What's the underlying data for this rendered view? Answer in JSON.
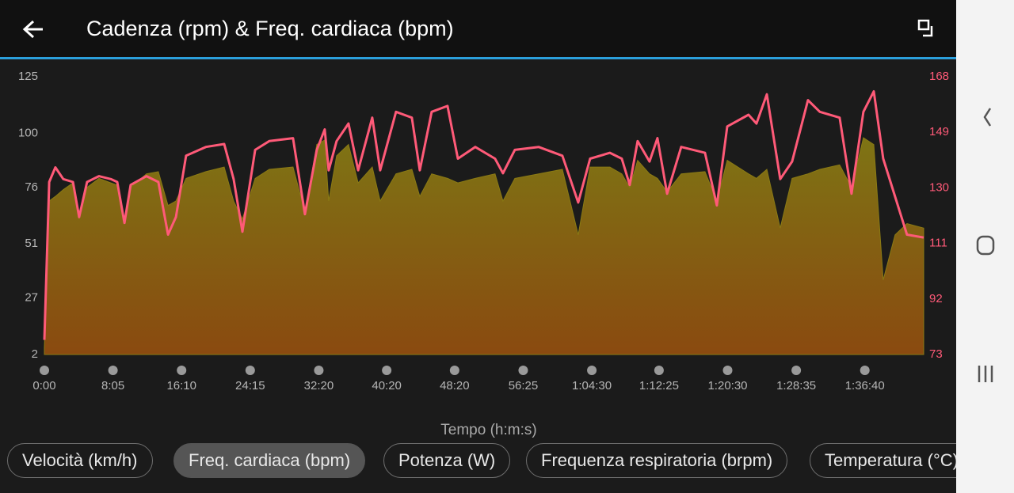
{
  "header": {
    "title": "Cadenza (rpm) & Freq. cardiaca (bpm)"
  },
  "chart_data": {
    "type": "area-line",
    "xlabel": "Tempo (h:m:s)",
    "x": [
      0,
      34,
      78,
      134,
      202,
      246,
      302,
      386,
      470,
      515,
      566,
      610,
      722,
      806,
      874,
      930,
      1002,
      1142,
      1271,
      1338,
      1400,
      1490,
      1590,
      1758,
      1842,
      1926,
      1982,
      2010,
      2066,
      2150,
      2218,
      2318,
      2374,
      2486,
      2598,
      2654,
      2738,
      2850,
      2923,
      3046,
      3186,
      3242,
      3326,
      3494,
      3662,
      3774,
      3858,
      3998,
      4082,
      4138,
      4194,
      4278,
      4334,
      4402,
      4502,
      4670,
      4754,
      4827,
      4978,
      5034,
      5107,
      5202,
      5286,
      5398,
      5482,
      5622,
      5706,
      5790,
      5863,
      5930,
      6014,
      6098,
      6216
    ],
    "series": [
      {
        "name": "Cadenza (rpm)",
        "color": "#8a7a14",
        "values": [
          5,
          70,
          72,
          75,
          78,
          62,
          76,
          80,
          78,
          77,
          60,
          76,
          82,
          83,
          68,
          70,
          80,
          83,
          85,
          70,
          62,
          80,
          84,
          85,
          65,
          95,
          97,
          70,
          90,
          95,
          78,
          85,
          70,
          82,
          84,
          72,
          82,
          80,
          78,
          80,
          82,
          70,
          80,
          82,
          84,
          55,
          85,
          85,
          82,
          76,
          88,
          82,
          80,
          74,
          82,
          83,
          70,
          88,
          82,
          80,
          84,
          58,
          80,
          82,
          84,
          86,
          76,
          98,
          95,
          35,
          55,
          60,
          58
        ]
      },
      {
        "name": "Freq. cardiaca (bpm)",
        "color": "#ff5a78",
        "axis": "y2",
        "values": [
          78,
          132,
          137,
          133,
          132,
          120,
          132,
          134,
          133,
          132,
          118,
          131,
          134,
          132,
          114,
          120,
          141,
          144,
          145,
          133,
          115,
          143,
          146,
          147,
          121,
          143,
          150,
          136,
          146,
          152,
          136,
          154,
          136,
          156,
          154,
          136,
          156,
          158,
          140,
          144,
          140,
          135,
          143,
          144,
          141,
          125,
          140,
          142,
          140,
          131,
          146,
          139,
          147,
          128,
          144,
          142,
          124,
          151,
          155,
          152,
          162,
          133,
          139,
          160,
          156,
          154,
          128,
          156,
          163,
          140,
          127,
          114,
          113
        ]
      }
    ],
    "xlim": [
      0,
      6216
    ],
    "xticks": [
      {
        "value": 0,
        "label": "0:00"
      },
      {
        "value": 485,
        "label": "8:05"
      },
      {
        "value": 970,
        "label": "16:10"
      },
      {
        "value": 1455,
        "label": "24:15"
      },
      {
        "value": 1940,
        "label": "32:20"
      },
      {
        "value": 2420,
        "label": "40:20"
      },
      {
        "value": 2900,
        "label": "48:20"
      },
      {
        "value": 3385,
        "label": "56:25"
      },
      {
        "value": 3870,
        "label": "1:04:30"
      },
      {
        "value": 4345,
        "label": "1:12:25"
      },
      {
        "value": 4830,
        "label": "1:20:30"
      },
      {
        "value": 5315,
        "label": "1:28:35"
      },
      {
        "value": 5800,
        "label": "1:36:40"
      }
    ],
    "ylim": [
      2,
      125
    ],
    "yticks": [
      2,
      27,
      51,
      76,
      100,
      125
    ],
    "y2lim": [
      73,
      168
    ],
    "y2ticks": [
      73,
      92,
      111,
      130,
      149,
      168
    ]
  },
  "chips": [
    {
      "label": "Velocità (km/h)",
      "selected": false
    },
    {
      "label": "Freq. cardiaca (bpm)",
      "selected": true
    },
    {
      "label": "Potenza (W)",
      "selected": false
    },
    {
      "label": "Frequenza respiratoria (brpm)",
      "selected": false
    },
    {
      "label": "Temperatura (°C)",
      "selected": false
    }
  ]
}
